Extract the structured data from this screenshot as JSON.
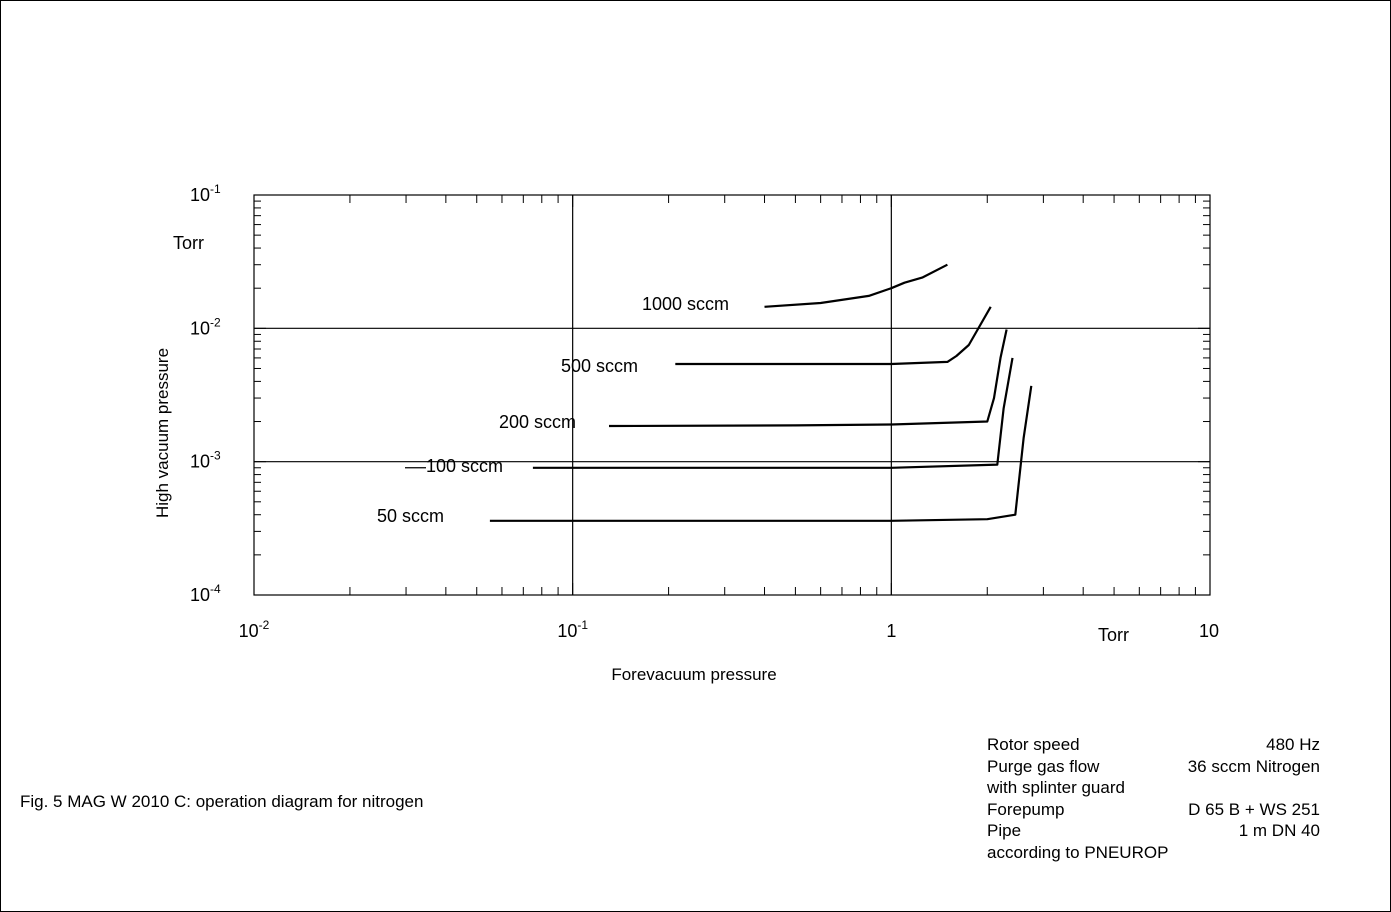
{
  "chart_data": {
    "type": "line",
    "x_scale": "log",
    "y_scale": "log",
    "xlim": [
      0.01,
      10
    ],
    "ylim": [
      0.0001,
      0.1
    ],
    "xlabel": "Forevacuum pressure",
    "ylabel": "High vacuum pressure",
    "x_unit": "Torr",
    "y_unit": "Torr",
    "x_ticks": [
      {
        "value": 0.01,
        "base": "10",
        "exp": "-2"
      },
      {
        "value": 0.1,
        "base": "10",
        "exp": "-1"
      },
      {
        "value": 1,
        "base": "1",
        "exp": ""
      },
      {
        "value": 10,
        "base": "10",
        "exp": ""
      }
    ],
    "y_ticks": [
      {
        "value": 0.0001,
        "base": "10",
        "exp": "-4"
      },
      {
        "value": 0.001,
        "base": "10",
        "exp": "-3"
      },
      {
        "value": 0.01,
        "base": "10",
        "exp": "-2"
      },
      {
        "value": 0.1,
        "base": "10",
        "exp": "-1"
      }
    ],
    "grid": "major",
    "series": [
      {
        "name": "1000 sccm",
        "x": [
          0.4,
          0.6,
          0.85,
          1.0,
          1.1,
          1.25,
          1.5
        ],
        "y": [
          0.0145,
          0.0155,
          0.0175,
          0.02,
          0.022,
          0.024,
          0.03
        ]
      },
      {
        "name": "500 sccm",
        "x": [
          0.21,
          0.5,
          1.0,
          1.5,
          1.6,
          1.75,
          2.05
        ],
        "y": [
          0.0054,
          0.0054,
          0.0054,
          0.0056,
          0.0062,
          0.0075,
          0.0145
        ]
      },
      {
        "name": "200 sccm",
        "x": [
          0.13,
          0.5,
          1.0,
          2.0,
          2.1,
          2.2,
          2.3
        ],
        "y": [
          0.00185,
          0.00187,
          0.0019,
          0.002,
          0.003,
          0.006,
          0.0098
        ]
      },
      {
        "name": "100 sccm",
        "x": [
          0.075,
          0.5,
          1.0,
          2.15,
          2.25,
          2.4
        ],
        "y": [
          0.0009,
          0.0009,
          0.0009,
          0.00095,
          0.0025,
          0.006
        ]
      },
      {
        "name": "50 sccm",
        "x": [
          0.055,
          0.5,
          1.0,
          2.0,
          2.45,
          2.6,
          2.75
        ],
        "y": [
          0.00036,
          0.00036,
          0.00036,
          0.00037,
          0.0004,
          0.0015,
          0.0037
        ]
      }
    ]
  },
  "caption": "Fig. 5  MAG W 2010 C: operation diagram for nitrogen",
  "specs": [
    {
      "label": "Rotor speed",
      "value": "480 Hz"
    },
    {
      "label": "Purge gas flow",
      "value": "36 sccm Nitrogen"
    },
    {
      "label": "with splinter guard",
      "value": ""
    },
    {
      "label": "Forepump",
      "value": "D 65 B + WS 251"
    },
    {
      "label": "Pipe",
      "value": "1 m DN 40"
    },
    {
      "label": "according to PNEUROP",
      "value": ""
    }
  ]
}
